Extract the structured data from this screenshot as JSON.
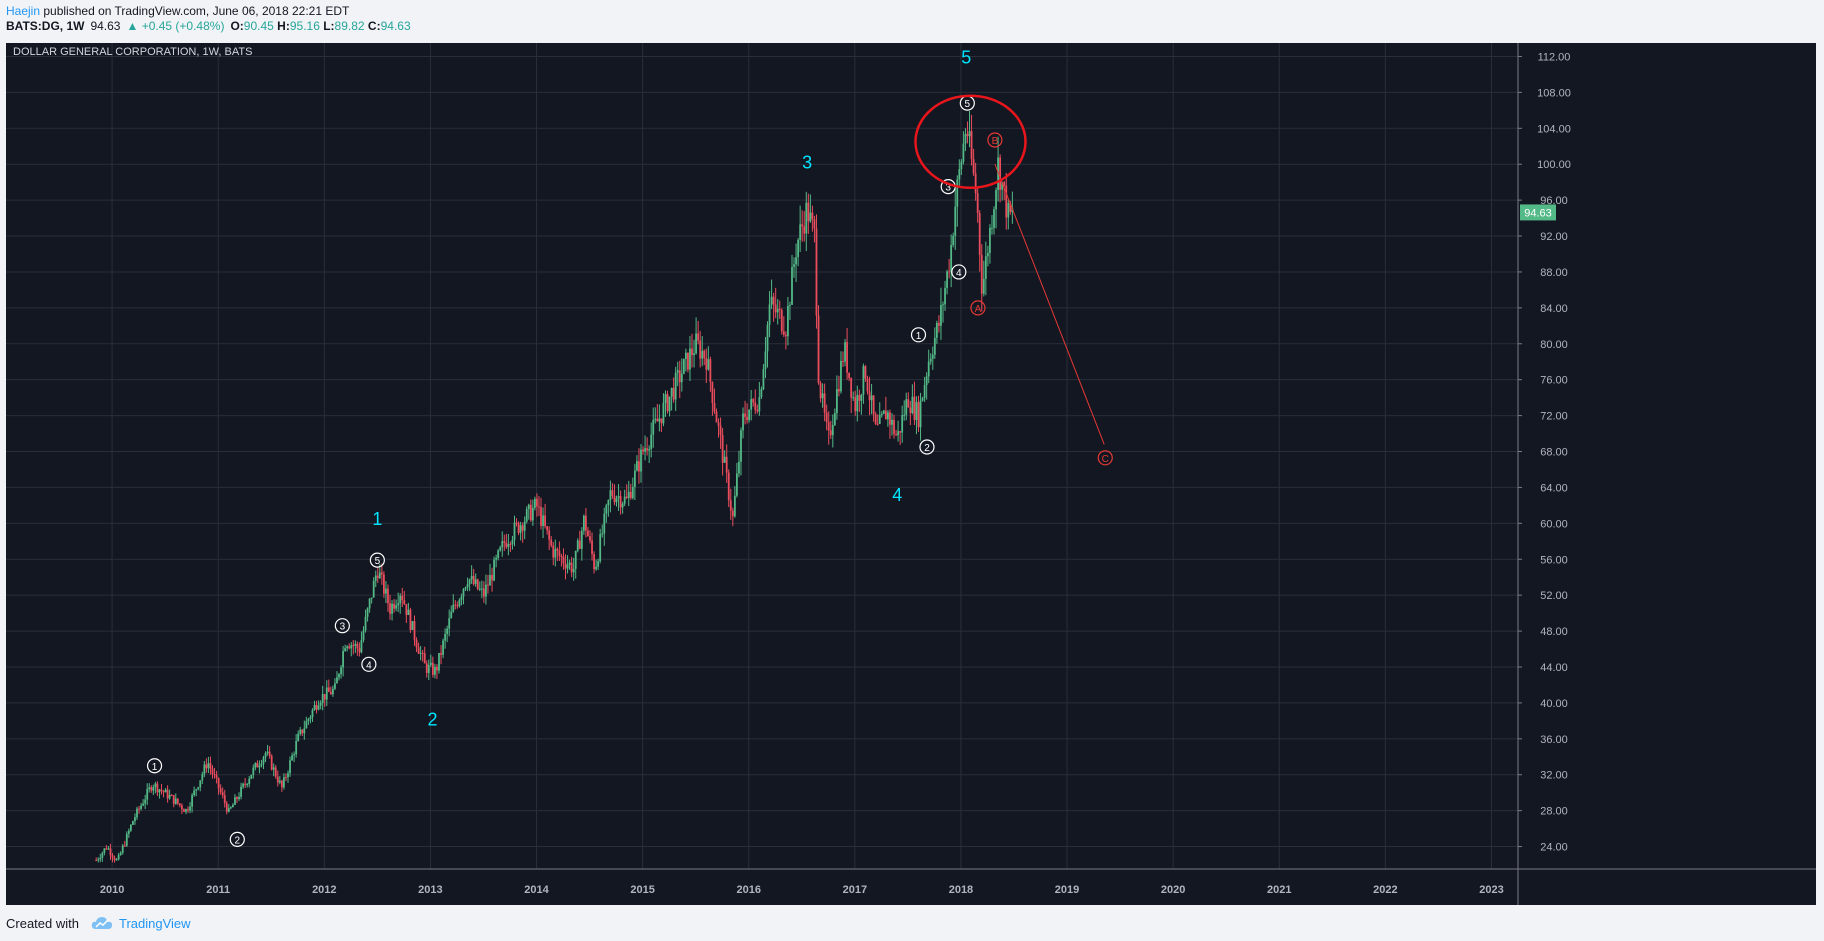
{
  "header": {
    "author": "Haejin",
    "published": " published on TradingView.com, June 06, 2018 22:21 EDT",
    "symbol": "BATS:DG, 1W",
    "last": "94.63",
    "change": "+0.45 (+0.48%)",
    "open_label": "O:",
    "open": "90.45",
    "high_label": "H:",
    "high": "95.16",
    "low_label": "L:",
    "low": "89.82",
    "close_label": "C:",
    "close": "94.63"
  },
  "footer": {
    "created_with": "Created with",
    "brand": "TradingView",
    "brand_icon": "tradingview-cloud-icon"
  },
  "colors": {
    "background": "#131722",
    "grid": "#2a2e39",
    "up_candle": "#53b987",
    "down_candle": "#eb4d5c",
    "wave_label": "#00e5ff",
    "correction": "#e53935",
    "price_tag": "#53b987"
  },
  "chart_data": {
    "type": "candlestick",
    "title": "DOLLAR GENERAL CORPORATION, 1W, BATS",
    "xlabel": "",
    "ylabel": "",
    "x_range": [
      2009.0,
      2023.25
    ],
    "ylim": [
      21.5,
      113.5
    ],
    "y_ticks": [
      "24.00",
      "28.00",
      "32.00",
      "36.00",
      "40.00",
      "44.00",
      "48.00",
      "52.00",
      "56.00",
      "60.00",
      "64.00",
      "68.00",
      "72.00",
      "76.00",
      "80.00",
      "84.00",
      "88.00",
      "92.00",
      "96.00",
      "100.00",
      "104.00",
      "108.00",
      "112.00"
    ],
    "x_ticks": [
      "2010",
      "2011",
      "2012",
      "2013",
      "2014",
      "2015",
      "2016",
      "2017",
      "2018",
      "2019",
      "2020",
      "2021",
      "2022",
      "2023"
    ],
    "grid": true,
    "last_price": "94.63",
    "price_path": [
      [
        2009.85,
        22.5
      ],
      [
        2009.95,
        24.0
      ],
      [
        2010.05,
        22.3
      ],
      [
        2010.2,
        27.0
      ],
      [
        2010.38,
        31.0
      ],
      [
        2010.55,
        29.5
      ],
      [
        2010.7,
        28.0
      ],
      [
        2010.9,
        33.5
      ],
      [
        2011.1,
        27.8
      ],
      [
        2011.3,
        32.0
      ],
      [
        2011.45,
        34.5
      ],
      [
        2011.6,
        30.5
      ],
      [
        2011.75,
        36.0
      ],
      [
        2011.95,
        40.5
      ],
      [
        2012.1,
        41.5
      ],
      [
        2012.2,
        47.0
      ],
      [
        2012.33,
        46.0
      ],
      [
        2012.5,
        55.0
      ],
      [
        2012.62,
        50.5
      ],
      [
        2012.72,
        52.5
      ],
      [
        2012.85,
        47.5
      ],
      [
        2012.95,
        44.0
      ],
      [
        2013.05,
        43.5
      ],
      [
        2013.2,
        50.0
      ],
      [
        2013.35,
        54.0
      ],
      [
        2013.5,
        52.0
      ],
      [
        2013.7,
        58.0
      ],
      [
        2014.0,
        62.0
      ],
      [
        2014.15,
        57.0
      ],
      [
        2014.35,
        55.0
      ],
      [
        2014.45,
        60.5
      ],
      [
        2014.55,
        55.0
      ],
      [
        2014.7,
        63.5
      ],
      [
        2014.85,
        62.5
      ],
      [
        2015.0,
        68.0
      ],
      [
        2015.25,
        74.0
      ],
      [
        2015.5,
        80.0
      ],
      [
        2015.6,
        78.5
      ],
      [
        2015.75,
        68.0
      ],
      [
        2015.85,
        60.5
      ],
      [
        2015.95,
        72.0
      ],
      [
        2016.1,
        74.0
      ],
      [
        2016.2,
        84.5
      ],
      [
        2016.35,
        82.0
      ],
      [
        2016.45,
        91.0
      ],
      [
        2016.55,
        95.0
      ],
      [
        2016.62,
        92.0
      ],
      [
        2016.66,
        76.0
      ],
      [
        2016.75,
        69.0
      ],
      [
        2016.9,
        79.5
      ],
      [
        2017.0,
        73.0
      ],
      [
        2017.1,
        77.0
      ],
      [
        2017.2,
        70.0
      ],
      [
        2017.3,
        72.5
      ],
      [
        2017.4,
        69.5
      ],
      [
        2017.5,
        74.0
      ],
      [
        2017.6,
        72.0
      ],
      [
        2017.7,
        78.5
      ],
      [
        2017.8,
        82.5
      ],
      [
        2017.9,
        90.0
      ],
      [
        2017.95,
        96.0
      ],
      [
        2018.05,
        104.5
      ],
      [
        2018.15,
        96.0
      ],
      [
        2018.2,
        86.0
      ],
      [
        2018.3,
        95.0
      ],
      [
        2018.35,
        100.0
      ],
      [
        2018.45,
        94.0
      ],
      [
        2018.5,
        94.63
      ]
    ],
    "wave_labels": [
      {
        "text": "1",
        "x": 2012.5,
        "y": 59.8
      },
      {
        "text": "2",
        "x": 2013.02,
        "y": 37.5
      },
      {
        "text": "3",
        "x": 2016.55,
        "y": 99.5
      },
      {
        "text": "4",
        "x": 2017.4,
        "y": 62.5
      },
      {
        "text": "5",
        "x": 2018.05,
        "y": 111.2
      }
    ],
    "subwave_labels": [
      {
        "text": "1",
        "x": 2010.4,
        "y": 33.0
      },
      {
        "text": "2",
        "x": 2011.18,
        "y": 24.8
      },
      {
        "text": "3",
        "x": 2012.17,
        "y": 48.6
      },
      {
        "text": "4",
        "x": 2012.42,
        "y": 44.3
      },
      {
        "text": "5",
        "x": 2012.5,
        "y": 55.9
      },
      {
        "text": "1",
        "x": 2017.6,
        "y": 81.0
      },
      {
        "text": "2",
        "x": 2017.68,
        "y": 68.5
      },
      {
        "text": "3",
        "x": 2017.88,
        "y": 97.5
      },
      {
        "text": "4",
        "x": 2017.98,
        "y": 88.0
      },
      {
        "text": "5",
        "x": 2018.06,
        "y": 106.8
      }
    ],
    "correction_labels": [
      {
        "text": "A",
        "x": 2018.16,
        "y": 84.0
      },
      {
        "text": "B",
        "x": 2018.32,
        "y": 102.7
      },
      {
        "text": "C",
        "x": 2019.36,
        "y": 67.3
      }
    ],
    "projection_line": [
      [
        2018.32,
        100.0
      ],
      [
        2019.35,
        68.8
      ]
    ],
    "highlight_circle": {
      "x": 2018.09,
      "y": 102.5,
      "label": "top"
    }
  }
}
